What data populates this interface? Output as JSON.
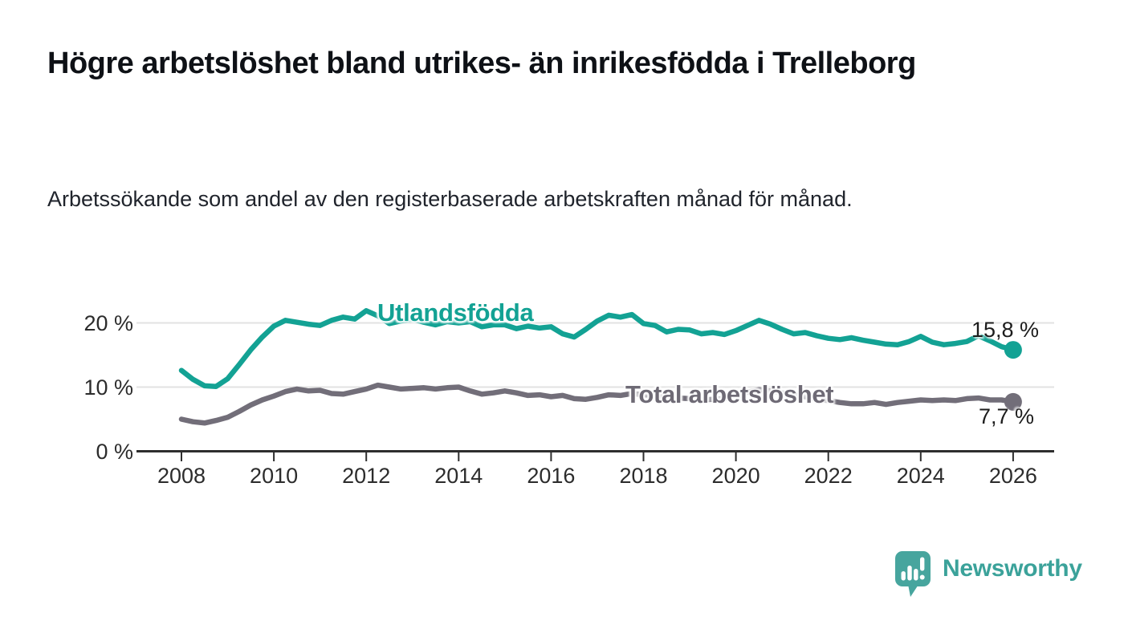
{
  "header": {
    "title": "Högre arbetslöshet bland utrikes- än inrikesfödda i Trelleborg",
    "subtitle": "Arbetssökande som andel av den registerbaserade arbetskraften månad för månad."
  },
  "chart_data": {
    "type": "line",
    "title": "Högre arbetslöshet bland utrikes- än inrikesfödda i Trelleborg",
    "xlabel": "",
    "ylabel": "",
    "unit": "%",
    "grid": "horizontal",
    "legend": "inline-labels",
    "x_axis": {
      "ticks": [
        2008,
        2010,
        2012,
        2014,
        2016,
        2018,
        2020,
        2022,
        2024,
        2026
      ],
      "labels": [
        "2008",
        "2010",
        "2012",
        "2014",
        "2016",
        "2018",
        "2020",
        "2022",
        "2024",
        "2026"
      ],
      "range_years": [
        2008.0,
        2026.1
      ]
    },
    "y_axis": {
      "ticks": [
        0,
        10,
        20
      ],
      "labels": [
        "0 %",
        "10 %",
        "20 %"
      ],
      "ylim": [
        0,
        23
      ]
    },
    "series": [
      {
        "name": "Utlandsfödda",
        "color": "#13a294",
        "end_value": 15.8,
        "end_label": "15,8 %",
        "points": [
          [
            2008.0,
            12.6
          ],
          [
            2008.25,
            11.2
          ],
          [
            2008.5,
            10.2
          ],
          [
            2008.75,
            10.1
          ],
          [
            2009.0,
            11.3
          ],
          [
            2009.25,
            13.5
          ],
          [
            2009.5,
            15.8
          ],
          [
            2009.75,
            17.8
          ],
          [
            2010.0,
            19.5
          ],
          [
            2010.25,
            20.4
          ],
          [
            2010.5,
            20.1
          ],
          [
            2010.75,
            19.8
          ],
          [
            2011.0,
            19.6
          ],
          [
            2011.25,
            20.4
          ],
          [
            2011.5,
            20.9
          ],
          [
            2011.75,
            20.6
          ],
          [
            2012.0,
            21.9
          ],
          [
            2012.25,
            21.1
          ],
          [
            2012.5,
            19.9
          ],
          [
            2012.75,
            20.3
          ],
          [
            2013.0,
            20.6
          ],
          [
            2013.25,
            20.1
          ],
          [
            2013.5,
            19.7
          ],
          [
            2013.75,
            20.2
          ],
          [
            2014.0,
            20.0
          ],
          [
            2014.25,
            20.2
          ],
          [
            2014.5,
            19.4
          ],
          [
            2014.75,
            19.7
          ],
          [
            2015.0,
            19.7
          ],
          [
            2015.25,
            19.1
          ],
          [
            2015.5,
            19.5
          ],
          [
            2015.75,
            19.2
          ],
          [
            2016.0,
            19.4
          ],
          [
            2016.25,
            18.3
          ],
          [
            2016.5,
            17.8
          ],
          [
            2016.75,
            19.0
          ],
          [
            2017.0,
            20.3
          ],
          [
            2017.25,
            21.2
          ],
          [
            2017.5,
            20.9
          ],
          [
            2017.75,
            21.3
          ],
          [
            2018.0,
            19.9
          ],
          [
            2018.25,
            19.6
          ],
          [
            2018.5,
            18.6
          ],
          [
            2018.75,
            19.0
          ],
          [
            2019.0,
            18.9
          ],
          [
            2019.25,
            18.3
          ],
          [
            2019.5,
            18.5
          ],
          [
            2019.75,
            18.2
          ],
          [
            2020.0,
            18.8
          ],
          [
            2020.25,
            19.6
          ],
          [
            2020.5,
            20.4
          ],
          [
            2020.75,
            19.8
          ],
          [
            2021.0,
            19.0
          ],
          [
            2021.25,
            18.3
          ],
          [
            2021.5,
            18.5
          ],
          [
            2021.75,
            18.0
          ],
          [
            2022.0,
            17.6
          ],
          [
            2022.25,
            17.4
          ],
          [
            2022.5,
            17.7
          ],
          [
            2022.75,
            17.3
          ],
          [
            2023.0,
            17.0
          ],
          [
            2023.25,
            16.7
          ],
          [
            2023.5,
            16.6
          ],
          [
            2023.75,
            17.1
          ],
          [
            2024.0,
            17.9
          ],
          [
            2024.25,
            17.0
          ],
          [
            2024.5,
            16.6
          ],
          [
            2024.75,
            16.8
          ],
          [
            2025.0,
            17.1
          ],
          [
            2025.25,
            18.0
          ],
          [
            2025.5,
            17.2
          ],
          [
            2025.75,
            16.3
          ],
          [
            2026.0,
            15.8
          ]
        ]
      },
      {
        "name": "Total arbetslöshet",
        "color": "#726e79",
        "end_value": 7.7,
        "end_label": "7,7 %",
        "points": [
          [
            2008.0,
            5.0
          ],
          [
            2008.25,
            4.6
          ],
          [
            2008.5,
            4.4
          ],
          [
            2008.75,
            4.8
          ],
          [
            2009.0,
            5.3
          ],
          [
            2009.25,
            6.2
          ],
          [
            2009.5,
            7.2
          ],
          [
            2009.75,
            8.0
          ],
          [
            2010.0,
            8.6
          ],
          [
            2010.25,
            9.3
          ],
          [
            2010.5,
            9.7
          ],
          [
            2010.75,
            9.4
          ],
          [
            2011.0,
            9.5
          ],
          [
            2011.25,
            9.0
          ],
          [
            2011.5,
            8.9
          ],
          [
            2011.75,
            9.3
          ],
          [
            2012.0,
            9.7
          ],
          [
            2012.25,
            10.3
          ],
          [
            2012.5,
            10.0
          ],
          [
            2012.75,
            9.7
          ],
          [
            2013.0,
            9.8
          ],
          [
            2013.25,
            9.9
          ],
          [
            2013.5,
            9.7
          ],
          [
            2013.75,
            9.9
          ],
          [
            2014.0,
            10.0
          ],
          [
            2014.25,
            9.4
          ],
          [
            2014.5,
            8.9
          ],
          [
            2014.75,
            9.1
          ],
          [
            2015.0,
            9.4
          ],
          [
            2015.25,
            9.1
          ],
          [
            2015.5,
            8.7
          ],
          [
            2015.75,
            8.8
          ],
          [
            2016.0,
            8.5
          ],
          [
            2016.25,
            8.7
          ],
          [
            2016.5,
            8.2
          ],
          [
            2016.75,
            8.1
          ],
          [
            2017.0,
            8.4
          ],
          [
            2017.25,
            8.8
          ],
          [
            2017.5,
            8.7
          ],
          [
            2017.75,
            9.0
          ],
          [
            2018.0,
            8.8
          ],
          [
            2018.25,
            8.6
          ],
          [
            2018.5,
            8.4
          ],
          [
            2018.75,
            8.3
          ],
          [
            2019.0,
            8.2
          ],
          [
            2019.25,
            8.0
          ],
          [
            2019.5,
            8.1
          ],
          [
            2019.75,
            8.2
          ],
          [
            2020.0,
            8.5
          ],
          [
            2020.25,
            9.2
          ],
          [
            2020.5,
            9.6
          ],
          [
            2020.75,
            9.4
          ],
          [
            2021.0,
            9.1
          ],
          [
            2021.25,
            8.8
          ],
          [
            2021.5,
            8.5
          ],
          [
            2021.75,
            8.1
          ],
          [
            2022.0,
            7.9
          ],
          [
            2022.25,
            7.6
          ],
          [
            2022.5,
            7.4
          ],
          [
            2022.75,
            7.4
          ],
          [
            2023.0,
            7.6
          ],
          [
            2023.25,
            7.3
          ],
          [
            2023.5,
            7.6
          ],
          [
            2023.75,
            7.8
          ],
          [
            2024.0,
            8.0
          ],
          [
            2024.25,
            7.9
          ],
          [
            2024.5,
            8.0
          ],
          [
            2024.75,
            7.9
          ],
          [
            2025.0,
            8.2
          ],
          [
            2025.25,
            8.3
          ],
          [
            2025.5,
            8.0
          ],
          [
            2025.75,
            8.0
          ],
          [
            2026.0,
            7.7
          ]
        ]
      }
    ],
    "colors": {
      "grid": "#e2e2e2",
      "axis": "#2e2e2e",
      "tick_text": "#2c2c2c"
    }
  },
  "footer": {
    "brand": "Newsworthy",
    "logo_icon": "newsworthy-speech-bubble-bar-chart-icon",
    "brand_color": "#3ba29a"
  }
}
